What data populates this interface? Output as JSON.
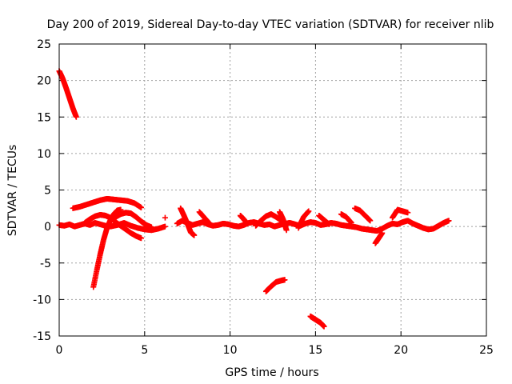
{
  "chart_data": {
    "type": "scatter",
    "title": "Day 200 of 2019, Sidereal Day-to-day VTEC variation (SDTVAR) for receiver nlib",
    "xlabel": "GPS time / hours",
    "ylabel": "SDTVAR / TECUs",
    "xlim": [
      0,
      25
    ],
    "ylim": [
      -15,
      25
    ],
    "xticks": [
      0,
      5,
      10,
      15,
      20,
      25
    ],
    "yticks": [
      -15,
      -10,
      -5,
      0,
      5,
      10,
      15,
      20,
      25
    ],
    "grid": true,
    "marker": "+",
    "color": "#ff0000",
    "segments": [
      {
        "x": [
          0.0,
          0.2,
          0.4,
          0.6,
          0.8,
          1.0
        ],
        "y": [
          21.3,
          20.3,
          19.0,
          17.6,
          16.2,
          15.0
        ]
      },
      {
        "x": [
          0.0,
          0.3,
          0.6,
          0.9,
          1.2,
          1.5,
          1.8,
          2.1,
          2.4,
          2.7,
          3.0,
          3.4,
          3.8,
          4.2,
          4.6,
          5.0,
          5.4,
          5.8,
          6.2
        ],
        "y": [
          0.2,
          0.1,
          0.3,
          0.0,
          0.2,
          0.4,
          0.2,
          0.5,
          0.3,
          0.1,
          0.0,
          0.2,
          0.5,
          0.1,
          -0.2,
          -0.4,
          -0.5,
          -0.3,
          0.0
        ]
      },
      {
        "x": [
          0.8,
          1.2,
          1.6,
          2.0,
          2.4,
          2.8,
          3.2,
          3.6,
          4.0,
          4.4,
          4.8
        ],
        "y": [
          2.5,
          2.7,
          3.0,
          3.3,
          3.6,
          3.8,
          3.7,
          3.6,
          3.5,
          3.2,
          2.6
        ]
      },
      {
        "x": [
          2.0,
          2.2,
          2.4,
          2.6,
          2.8,
          3.0,
          3.2,
          3.4,
          3.6
        ],
        "y": [
          -8.3,
          -6.0,
          -3.8,
          -1.8,
          -0.2,
          0.9,
          1.7,
          2.2,
          2.3
        ]
      },
      {
        "x": [
          1.5,
          1.8,
          2.1,
          2.4,
          2.7,
          3.0,
          3.3,
          3.6,
          3.9,
          4.2,
          4.5,
          4.8
        ],
        "y": [
          0.5,
          1.0,
          1.4,
          1.6,
          1.5,
          1.2,
          0.6,
          0.1,
          -0.4,
          -0.9,
          -1.3,
          -1.6
        ]
      },
      {
        "x": [
          3.0,
          3.3,
          3.6,
          3.9,
          4.2,
          4.5,
          4.8,
          5.1,
          5.4
        ],
        "y": [
          0.8,
          1.3,
          1.7,
          1.9,
          1.8,
          1.3,
          0.7,
          0.2,
          -0.1
        ]
      },
      {
        "x": [
          6.2
        ],
        "y": [
          1.2
        ]
      },
      {
        "x": [
          6.9,
          7.2,
          7.5,
          7.8,
          8.1,
          8.4,
          8.7,
          9.0,
          9.3,
          9.6,
          9.9,
          10.2,
          10.5,
          10.8,
          11.1,
          11.4,
          11.7,
          12.0,
          12.3,
          12.6,
          12.9,
          13.2,
          13.5,
          13.8,
          14.1,
          14.4,
          14.7,
          15.0,
          15.3,
          15.6,
          15.9,
          16.2,
          16.5,
          16.8,
          17.1,
          17.4,
          17.7,
          18.0,
          18.3,
          18.6,
          18.9,
          19.2,
          19.5,
          19.8,
          20.1,
          20.4,
          20.7,
          21.0,
          21.3,
          21.6,
          21.9,
          22.2,
          22.5,
          22.8
        ],
        "y": [
          0.4,
          0.8,
          0.5,
          0.2,
          0.4,
          0.6,
          0.3,
          0.1,
          0.2,
          0.4,
          0.3,
          0.1,
          0.0,
          0.2,
          0.5,
          0.6,
          0.4,
          0.2,
          0.3,
          0.0,
          0.2,
          0.4,
          0.5,
          0.3,
          0.1,
          0.4,
          0.6,
          0.5,
          0.2,
          0.3,
          0.5,
          0.4,
          0.2,
          0.1,
          0.0,
          -0.1,
          -0.3,
          -0.4,
          -0.5,
          -0.6,
          -0.3,
          0.1,
          0.4,
          0.3,
          0.6,
          0.8,
          0.4,
          0.1,
          -0.2,
          -0.4,
          -0.3,
          0.1,
          0.5,
          0.8
        ]
      },
      {
        "x": [
          7.1,
          7.3,
          7.5,
          7.7,
          7.9
        ],
        "y": [
          2.5,
          1.5,
          0.4,
          -0.8,
          -1.2
        ]
      },
      {
        "x": [
          8.2,
          8.5,
          8.8
        ],
        "y": [
          2.0,
          1.2,
          0.4
        ]
      },
      {
        "x": [
          10.6,
          10.8,
          11.0
        ],
        "y": [
          1.5,
          1.0,
          0.4
        ]
      },
      {
        "x": [
          11.5,
          11.8,
          12.1,
          12.4,
          12.7,
          13.0
        ],
        "y": [
          0.1,
          0.8,
          1.4,
          1.7,
          1.3,
          0.8
        ]
      },
      {
        "x": [
          12.9,
          13.1,
          13.3
        ],
        "y": [
          2.0,
          1.0,
          -0.5
        ]
      },
      {
        "x": [
          14.0,
          14.3,
          14.6
        ],
        "y": [
          -0.2,
          1.3,
          2.1
        ]
      },
      {
        "x": [
          15.2,
          15.5,
          15.8
        ],
        "y": [
          1.5,
          0.9,
          0.3
        ]
      },
      {
        "x": [
          16.5,
          16.8,
          17.1
        ],
        "y": [
          1.7,
          1.3,
          0.5
        ]
      },
      {
        "x": [
          17.3,
          17.6,
          17.9,
          18.2
        ],
        "y": [
          2.5,
          2.2,
          1.5,
          0.8
        ]
      },
      {
        "x": [
          18.5,
          18.7,
          18.9
        ],
        "y": [
          -2.3,
          -1.6,
          -0.9
        ]
      },
      {
        "x": [
          19.5,
          19.8,
          20.1,
          20.4
        ],
        "y": [
          1.2,
          2.3,
          2.1,
          1.9
        ]
      },
      {
        "x": [
          12.1,
          12.4,
          12.7,
          13.0,
          13.2
        ],
        "y": [
          -8.9,
          -8.2,
          -7.6,
          -7.4,
          -7.3
        ]
      },
      {
        "x": [
          14.7,
          14.9,
          15.1,
          15.3,
          15.5
        ],
        "y": [
          -12.3,
          -12.6,
          -12.9,
          -13.2,
          -13.7
        ]
      }
    ]
  }
}
